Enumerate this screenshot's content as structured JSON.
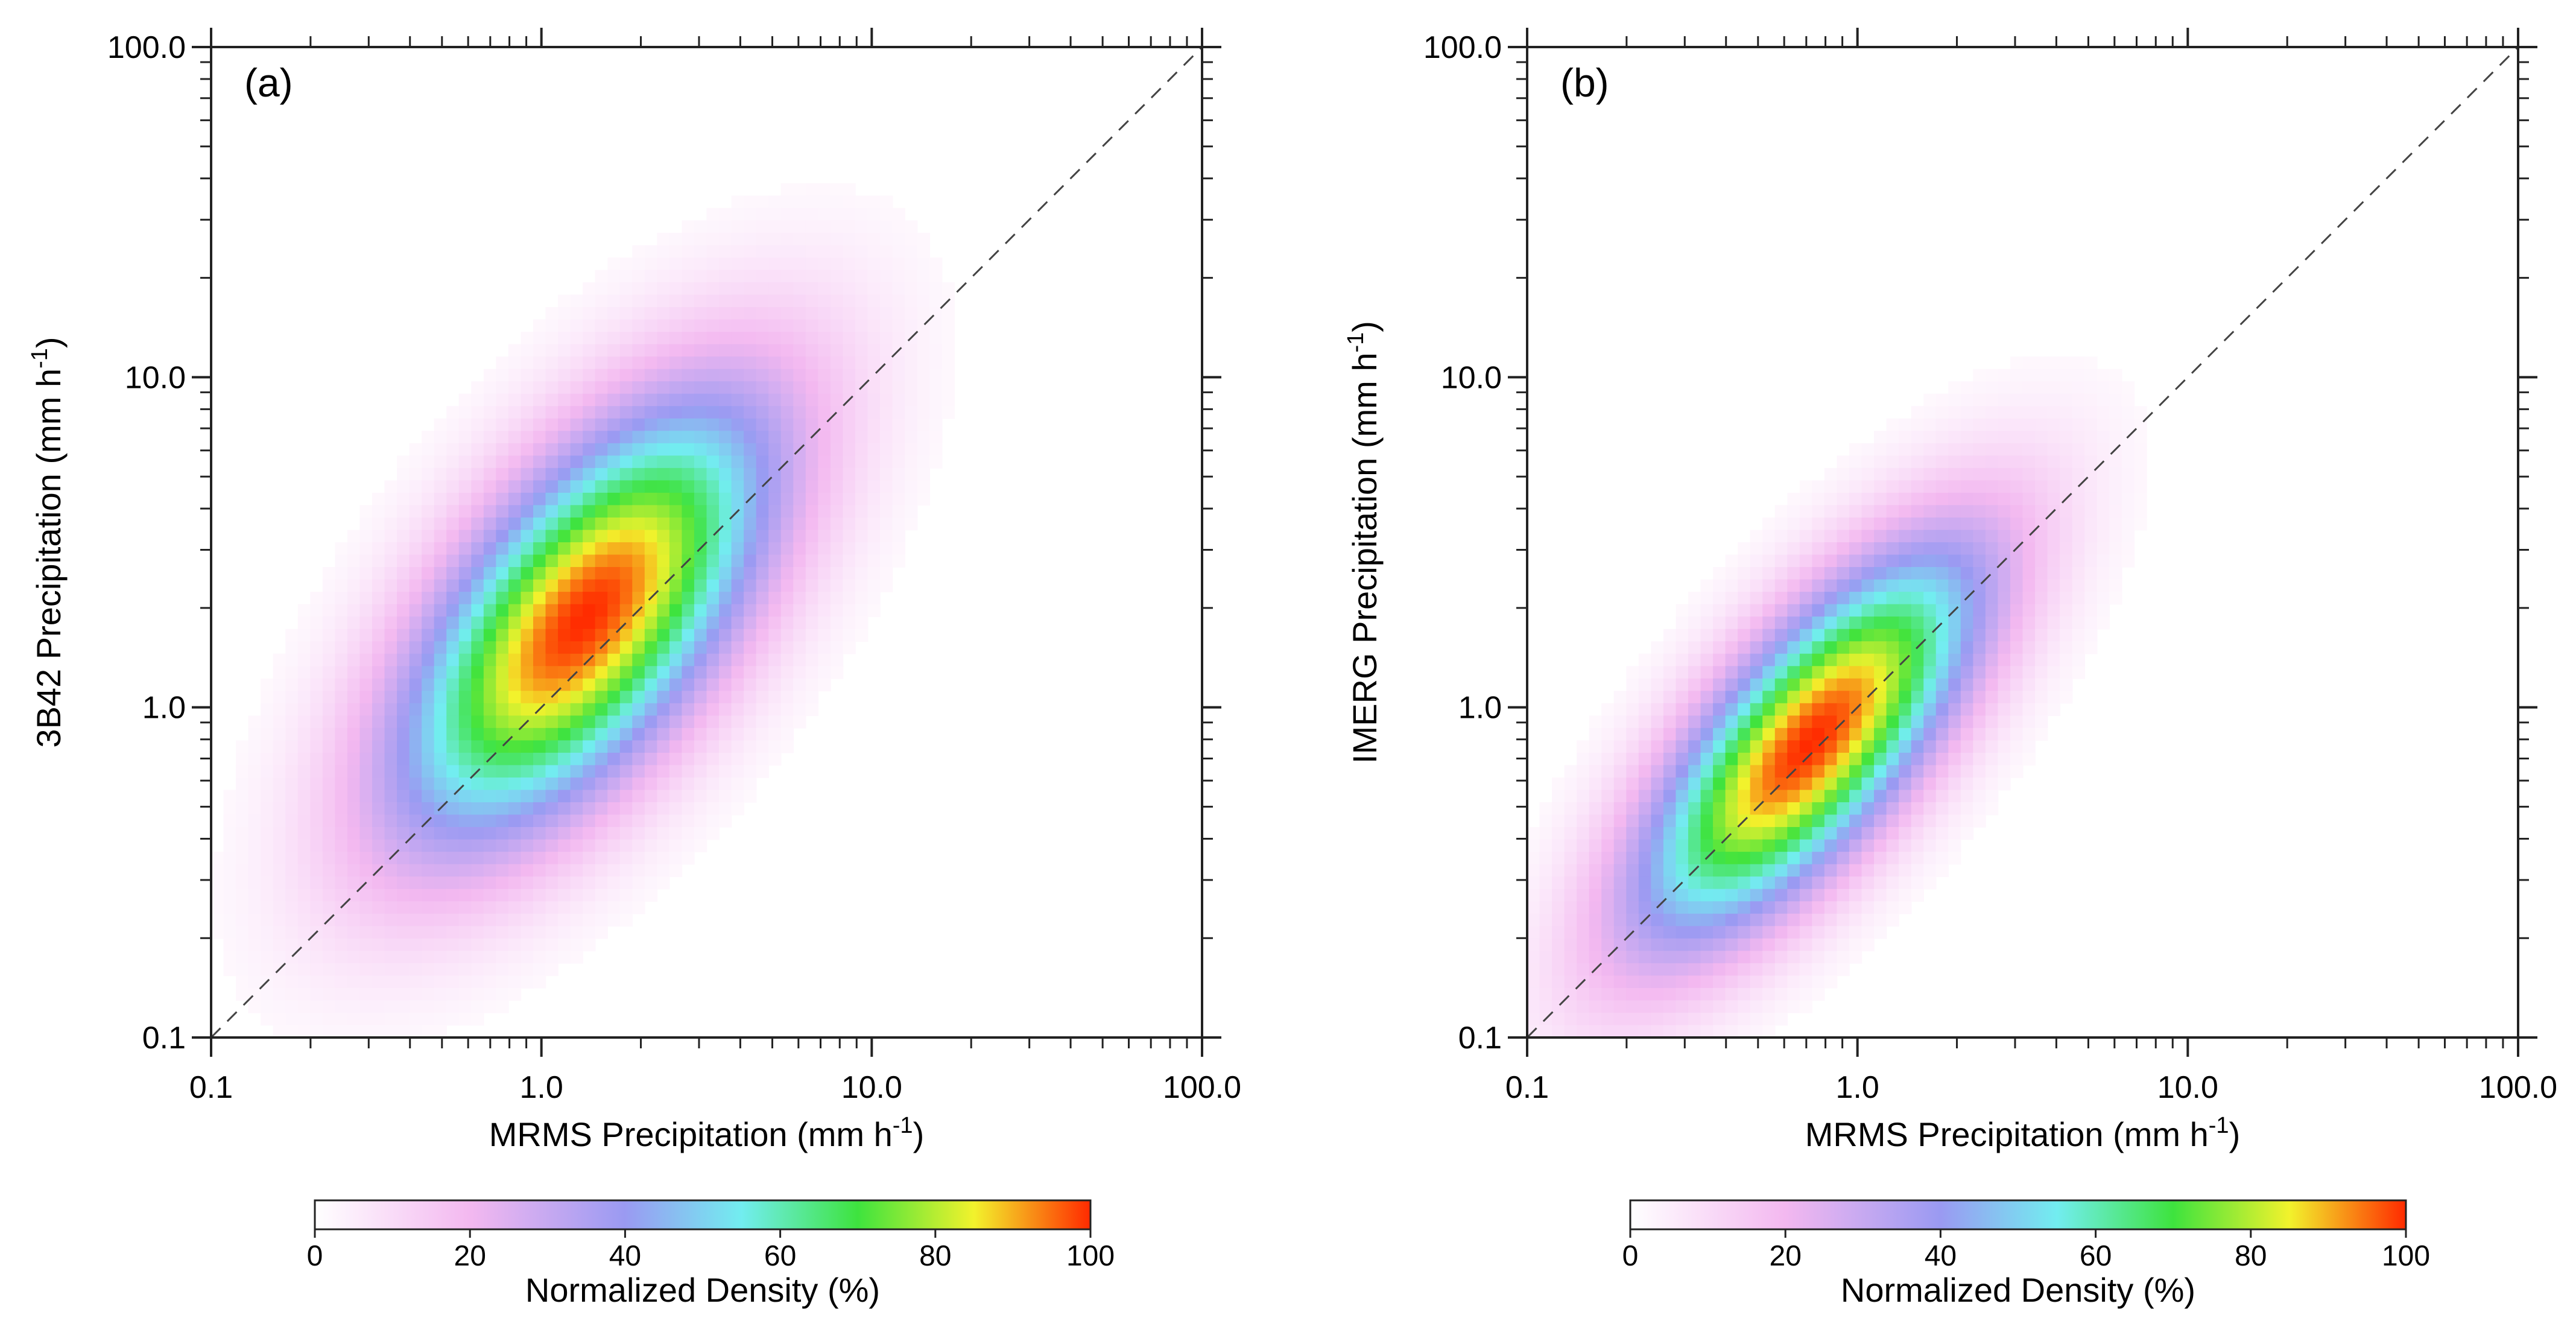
{
  "chart_data": [
    {
      "type": "heatmap",
      "panel_label": "(a)",
      "xlabel": "MRMS Precipitation (mm h",
      "ylabel": "3B42 Precipitation (mm h",
      "unit_exponent": "-1",
      "unit_close": ")",
      "x_scale": "log",
      "y_scale": "log",
      "xlim": [
        0.1,
        100.0
      ],
      "ylim": [
        0.1,
        100.0
      ],
      "x_ticks": [
        "0.1",
        "1.0",
        "10.0",
        "100.0"
      ],
      "y_ticks": [
        "0.1",
        "1.0",
        "10.0",
        "100.0"
      ],
      "x_tick_values": [
        0.1,
        1.0,
        10.0,
        100.0
      ],
      "y_tick_values": [
        0.1,
        1.0,
        10.0,
        100.0
      ],
      "reference_line": "1:1 dashed",
      "density_peak": {
        "x": 1.35,
        "y": 1.85,
        "value": 100
      },
      "density_shape": {
        "major_axis_log_sigma": 0.56,
        "minor_axis_log_sigma": 0.26,
        "angle_deg": 52
      },
      "colorbar": {
        "title": "Normalized Density (%)",
        "ticks": [
          "0",
          "20",
          "40",
          "60",
          "80",
          "100"
        ],
        "tick_values": [
          0,
          20,
          40,
          60,
          80,
          100
        ]
      }
    },
    {
      "type": "heatmap",
      "panel_label": "(b)",
      "xlabel": "MRMS Precipitation (mm h",
      "ylabel": "IMERG Precipitation (mm h",
      "unit_exponent": "-1",
      "unit_close": ")",
      "x_scale": "log",
      "y_scale": "log",
      "xlim": [
        0.1,
        100.0
      ],
      "ylim": [
        0.1,
        100.0
      ],
      "x_ticks": [
        "0.1",
        "1.0",
        "10.0",
        "100.0"
      ],
      "y_ticks": [
        "0.1",
        "1.0",
        "10.0",
        "100.0"
      ],
      "x_tick_values": [
        0.1,
        1.0,
        10.0,
        100.0
      ],
      "y_tick_values": [
        0.1,
        1.0,
        10.0,
        100.0
      ],
      "reference_line": "1:1 dashed",
      "density_peak": {
        "x": 0.72,
        "y": 0.78,
        "value": 100
      },
      "density_shape": {
        "major_axis_log_sigma": 0.52,
        "minor_axis_log_sigma": 0.2,
        "angle_deg": 50
      },
      "colorbar": {
        "title": "Normalized Density (%)",
        "ticks": [
          "0",
          "20",
          "40",
          "60",
          "80",
          "100"
        ],
        "tick_values": [
          0,
          20,
          40,
          60,
          80,
          100
        ]
      }
    }
  ],
  "colormap": [
    {
      "stop": 0,
      "color": "#ffffff"
    },
    {
      "stop": 20,
      "color": "#f3b8f0"
    },
    {
      "stop": 40,
      "color": "#9a9af2"
    },
    {
      "stop": 55,
      "color": "#72edf0"
    },
    {
      "stop": 70,
      "color": "#3ee33e"
    },
    {
      "stop": 85,
      "color": "#f2f22c"
    },
    {
      "stop": 100,
      "color": "#ff2a00"
    }
  ]
}
